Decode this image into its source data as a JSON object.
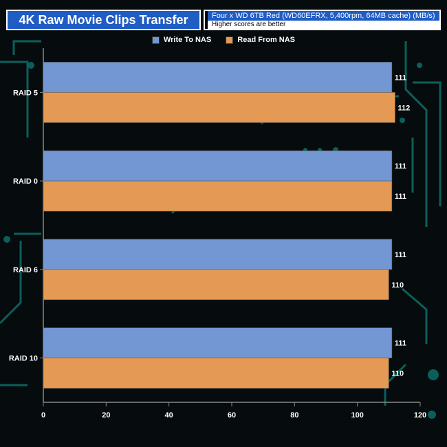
{
  "header": {
    "title": "4K Raw Movie Clips Transfer",
    "subtitle": "Four x WD 6TB Red (WD60EFRX, 5,400rpm, 64MB cache) (MB/s)",
    "note": "Higher scores are better"
  },
  "colors": {
    "background": "#060b0d",
    "circuit": "#0c6f6a",
    "header_blue": "#1f5cc4",
    "write": "#7397d3",
    "read": "#e49a54",
    "axis": "#8a8a8a",
    "text": "#ffffff"
  },
  "chart_data": {
    "type": "bar",
    "orientation": "horizontal",
    "categories": [
      "RAID 5",
      "RAID 0",
      "RAID 6",
      "RAID 10"
    ],
    "series": [
      {
        "name": "Write To NAS",
        "values": [
          111,
          111,
          111,
          111
        ]
      },
      {
        "name": "Read From NAS",
        "values": [
          112,
          111,
          110,
          110
        ]
      }
    ],
    "xlim": [
      0,
      120
    ],
    "xticks": [
      0,
      20,
      40,
      60,
      80,
      100,
      120
    ],
    "legend_position": "top-center",
    "grid": false,
    "data_labels": true
  }
}
